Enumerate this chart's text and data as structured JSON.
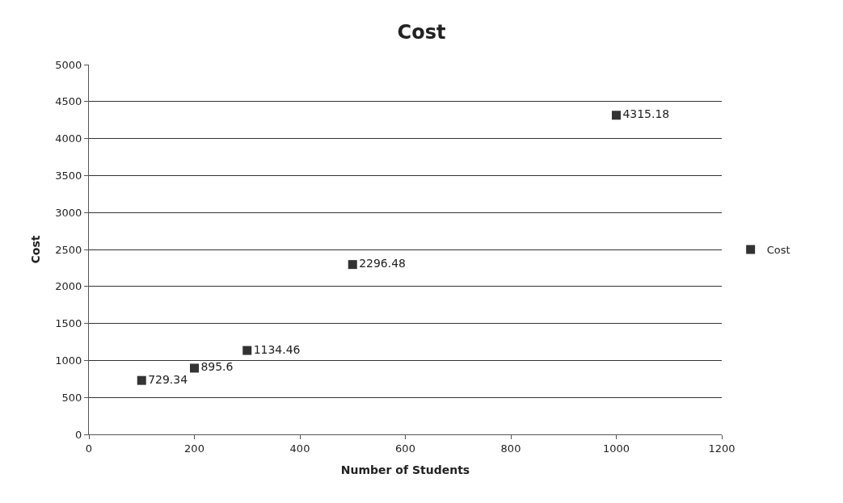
{
  "chart_data": {
    "type": "scatter",
    "title": "Cost",
    "xlabel": "Number of Students",
    "ylabel": "Cost",
    "x": [
      100,
      200,
      300,
      500,
      1000
    ],
    "series": [
      {
        "name": "Cost",
        "color": "#333333",
        "values": [
          729.34,
          895.6,
          1134.46,
          2296.48,
          4315.18
        ]
      }
    ],
    "data_labels": true,
    "marker": "square",
    "grid": "y",
    "legend": "right",
    "xlim": [
      0,
      1200
    ],
    "xticks": [
      0,
      200,
      400,
      600,
      800,
      1000,
      1200
    ],
    "ylim": [
      0,
      5000
    ],
    "yticks": [
      0,
      500,
      1000,
      1500,
      2000,
      2500,
      3000,
      3500,
      4000,
      4500,
      5000
    ]
  }
}
